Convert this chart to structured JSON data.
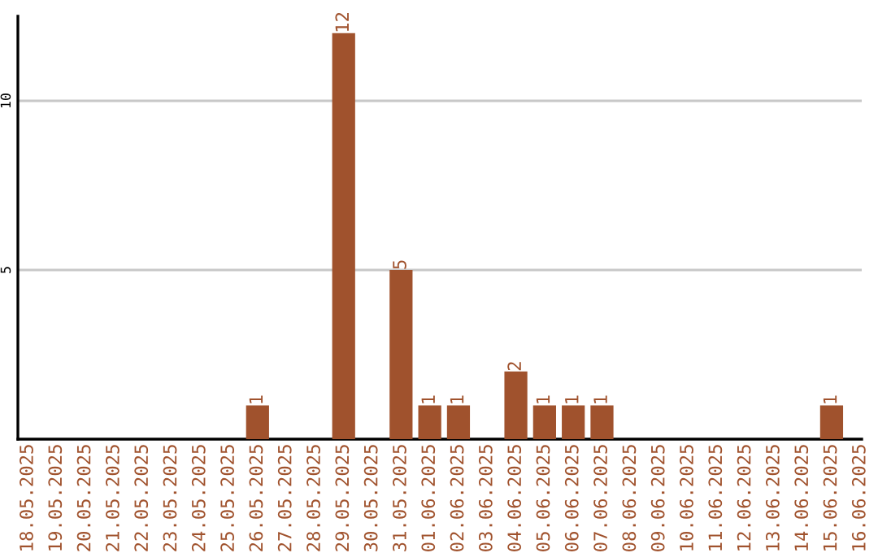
{
  "chart_data": {
    "type": "bar",
    "categories": [
      "18.05.2025",
      "19.05.2025",
      "20.05.2025",
      "21.05.2025",
      "22.05.2025",
      "23.05.2025",
      "24.05.2025",
      "25.05.2025",
      "26.05.2025",
      "27.05.2025",
      "28.05.2025",
      "29.05.2025",
      "30.05.2025",
      "31.05.2025",
      "01.06.2025",
      "02.06.2025",
      "03.06.2025",
      "04.06.2025",
      "05.06.2025",
      "06.06.2025",
      "07.06.2025",
      "08.06.2025",
      "09.06.2025",
      "10.06.2025",
      "11.06.2025",
      "12.06.2025",
      "13.06.2025",
      "14.06.2025",
      "15.06.2025",
      "16.06.2025"
    ],
    "values": [
      0,
      0,
      0,
      0,
      0,
      0,
      0,
      0,
      1,
      0,
      0,
      12,
      0,
      5,
      1,
      1,
      0,
      2,
      1,
      1,
      1,
      0,
      0,
      0,
      0,
      0,
      0,
      0,
      1,
      0
    ],
    "value_labels": [
      null,
      null,
      null,
      null,
      null,
      null,
      null,
      null,
      "1",
      null,
      null,
      "12",
      null,
      "5",
      "1",
      "1",
      null,
      "2",
      "1",
      "1",
      "1",
      null,
      null,
      null,
      null,
      null,
      null,
      null,
      "1",
      null
    ],
    "color": "#a0522d",
    "ylim": [
      0,
      12.5
    ],
    "yticks": [
      5,
      10
    ],
    "grid": "y",
    "legend": false
  }
}
